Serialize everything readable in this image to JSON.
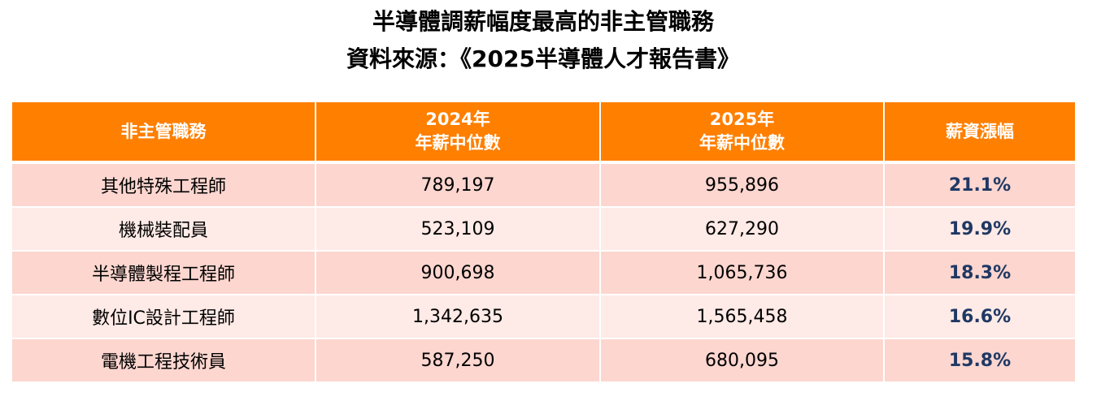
{
  "title": {
    "line1": "半導體調薪幅度最高的非主管職務",
    "line2": "資料來源：《2025半導體人才報告書》"
  },
  "table": {
    "headers": {
      "role": "非主管職務",
      "y2024_line1": "2024年",
      "y2024_line2": "年薪中位數",
      "y2025_line1": "2025年",
      "y2025_line2": "年薪中位數",
      "raise": "薪資漲幅"
    },
    "rows": [
      {
        "role": "其他特殊工程師",
        "y2024": "789,197",
        "y2025": "955,896",
        "raise": "21.1%"
      },
      {
        "role": "機械裝配員",
        "y2024": "523,109",
        "y2025": "627,290",
        "raise": "19.9%"
      },
      {
        "role": "半導體製程工程師",
        "y2024": "900,698",
        "y2025": "1,065,736",
        "raise": "18.3%"
      },
      {
        "role": "數位IC設計工程師",
        "y2024": "1,342,635",
        "y2025": "1,565,458",
        "raise": "16.6%"
      },
      {
        "role": "電機工程技術員",
        "y2024": "587,250",
        "y2025": "680,095",
        "raise": "15.8%"
      }
    ]
  },
  "colors": {
    "header_bg": "#ff7f00",
    "row_dark": "#fcd6cf",
    "row_light": "#feeae6",
    "raise_text": "#1f3864"
  }
}
